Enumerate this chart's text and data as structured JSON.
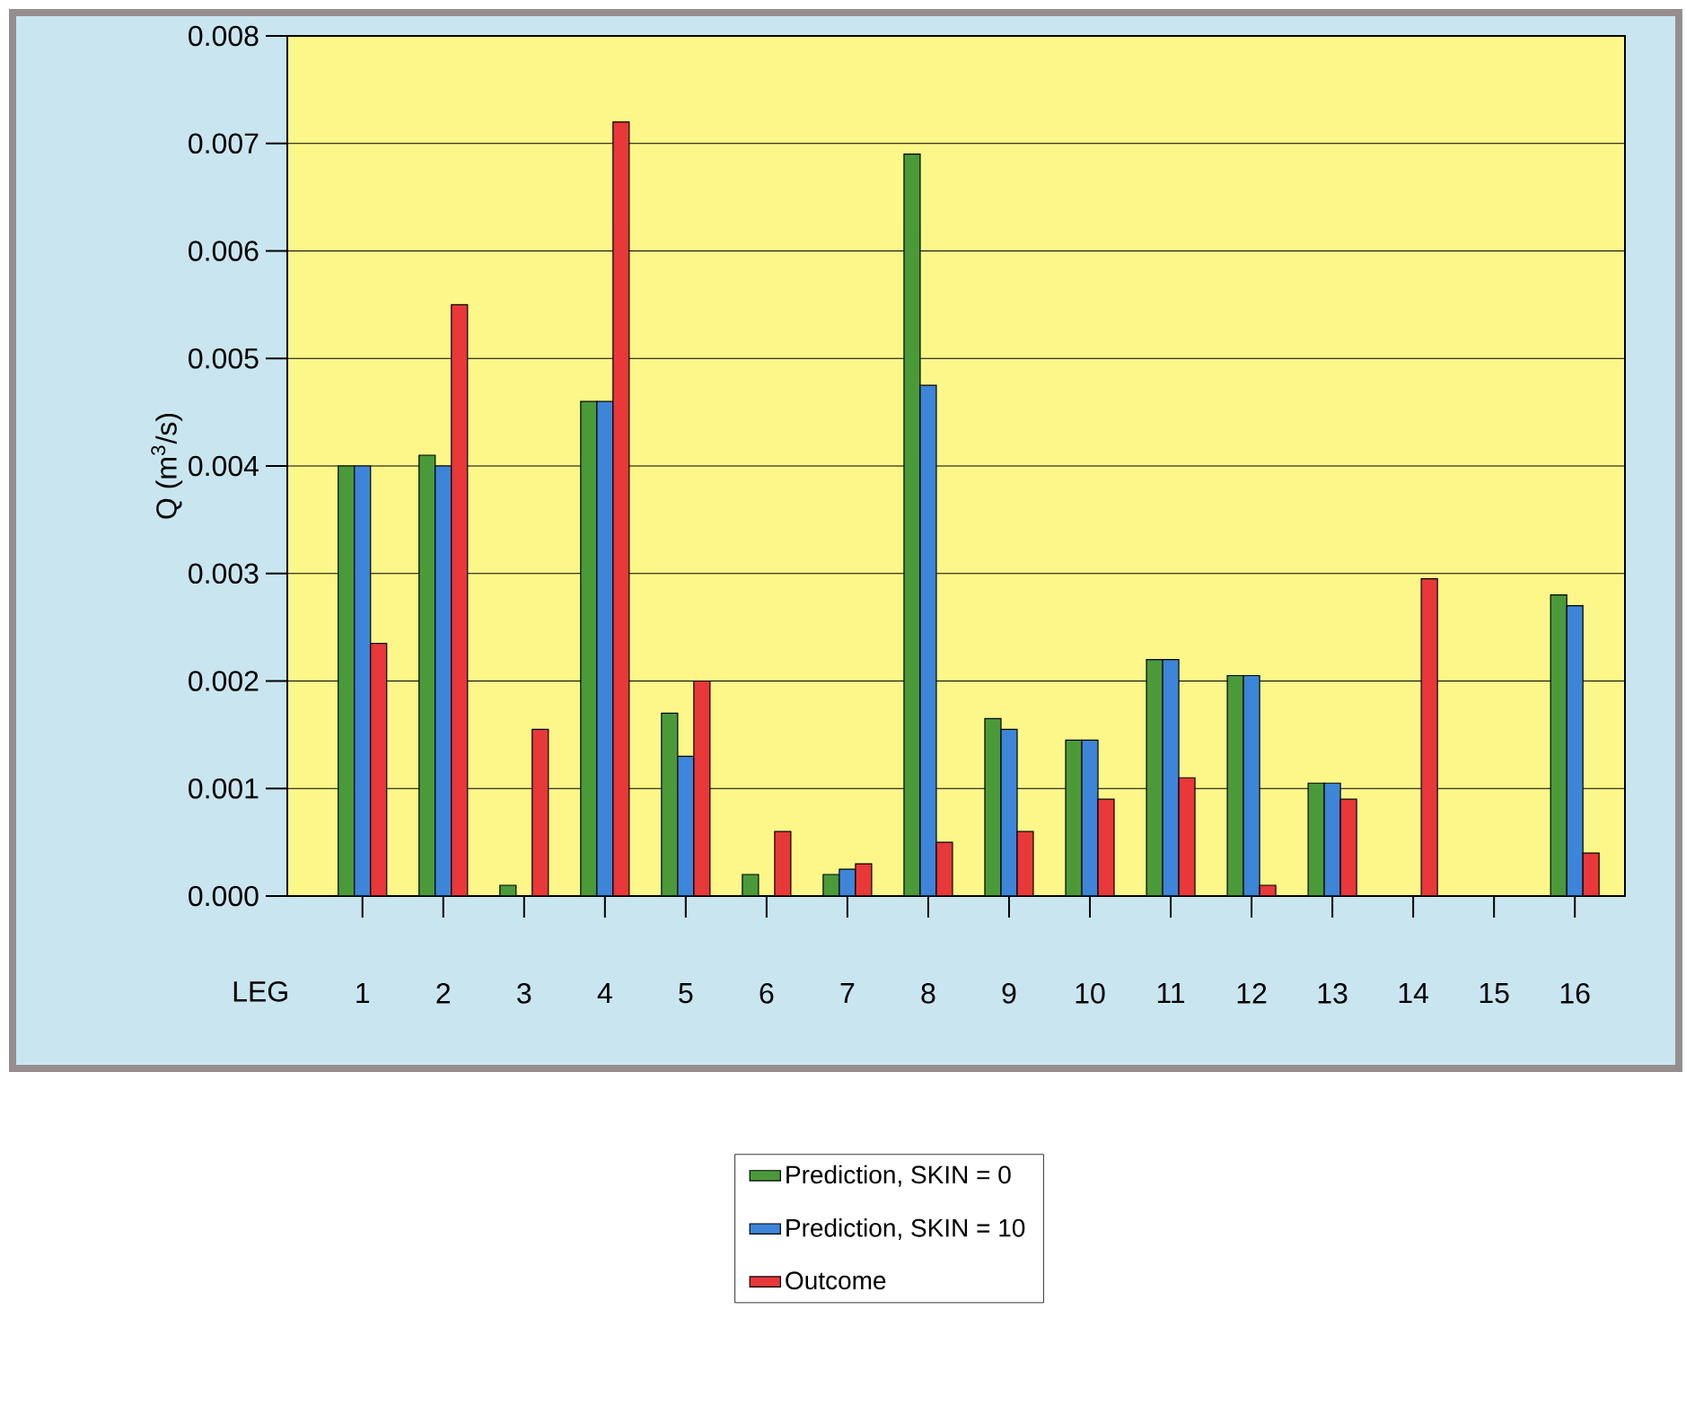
{
  "chart_data": {
    "type": "bar",
    "xlabel": "LEG",
    "ylabel": "Q  (m$^{3}$/s)",
    "categories": [
      "1",
      "2",
      "3",
      "4",
      "5",
      "6",
      "7",
      "8",
      "9",
      "10",
      "11",
      "12",
      "13",
      "14",
      "15",
      "16"
    ],
    "series": [
      {
        "name": "Prediction, SKIN = 0",
        "color": "#4a9a3a",
        "values": [
          0.004,
          0.0041,
          0.0001,
          0.0046,
          0.0017,
          0.0002,
          0.0002,
          0.0069,
          0.00165,
          0.00145,
          0.0022,
          0.00205,
          0.00105,
          null,
          null,
          0.0028
        ]
      },
      {
        "name": "Prediction, SKIN = 10",
        "color": "#3d85d8",
        "values": [
          0.004,
          0.004,
          null,
          0.0046,
          0.0013,
          null,
          0.00025,
          0.00475,
          0.00155,
          0.00145,
          0.0022,
          0.00205,
          0.00105,
          null,
          null,
          0.0027
        ]
      },
      {
        "name": "Outcome",
        "color": "#e8383a",
        "values": [
          0.00235,
          0.0055,
          0.00155,
          0.0072,
          0.002,
          0.0006,
          0.0003,
          0.0005,
          0.0006,
          0.0009,
          0.0011,
          0.0001,
          0.0009,
          0.00295,
          null,
          0.0004
        ]
      }
    ],
    "ylim": [
      0,
      0.008
    ],
    "yticks": [
      {
        "value": 0,
        "label": "0.000"
      },
      0.001,
      0.002,
      0.003,
      0.004,
      0.005,
      0.006,
      0.007,
      0.008
    ],
    "grid": "y",
    "legend": "bottom"
  }
}
